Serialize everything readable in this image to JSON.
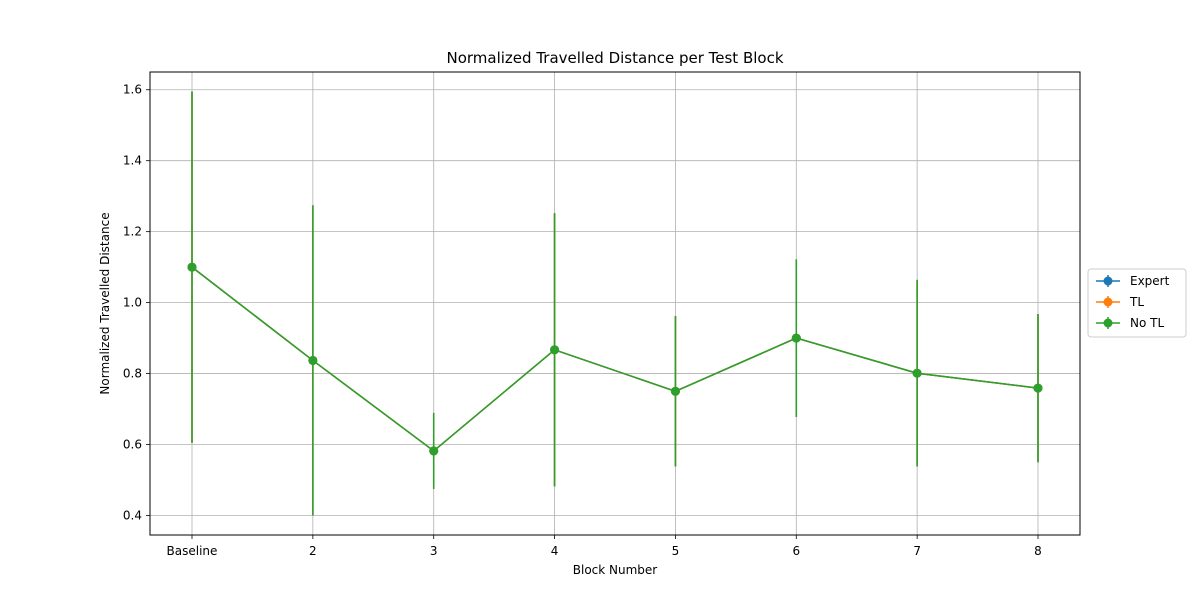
{
  "chart_data": {
    "type": "line",
    "title": "Normalized Travelled Distance per Test Block",
    "xlabel": "Block Number",
    "ylabel": "Normalized Travelled Distance",
    "categories": [
      "Baseline",
      "2",
      "3",
      "4",
      "5",
      "6",
      "7",
      "8"
    ],
    "yticks": [
      "0.4",
      "0.6",
      "0.8",
      "1.0",
      "1.2",
      "1.4",
      "1.6"
    ],
    "ylim": [
      0.345,
      1.65
    ],
    "grid": true,
    "legend_position": "center-right outside",
    "series": [
      {
        "name": "Expert",
        "color": "#1f77b4",
        "marker": "circle",
        "values": [
          1.1,
          0.837,
          0.582,
          0.867,
          0.75,
          0.9,
          0.801,
          0.759
        ],
        "errors": [
          0.495,
          0.437,
          0.107,
          0.385,
          0.212,
          0.222,
          0.263,
          0.209
        ]
      },
      {
        "name": "TL",
        "color": "#ff7f0e",
        "marker": "circle",
        "values": [
          1.1,
          0.837,
          0.582,
          0.867,
          0.75,
          0.9,
          0.801,
          0.759
        ],
        "errors": [
          0.495,
          0.437,
          0.107,
          0.385,
          0.212,
          0.222,
          0.263,
          0.209
        ]
      },
      {
        "name": "No TL",
        "color": "#2ca02c",
        "marker": "circle",
        "values": [
          1.1,
          0.837,
          0.582,
          0.867,
          0.75,
          0.9,
          0.801,
          0.759
        ],
        "errors": [
          0.495,
          0.437,
          0.107,
          0.385,
          0.212,
          0.222,
          0.263,
          0.209
        ]
      }
    ]
  }
}
